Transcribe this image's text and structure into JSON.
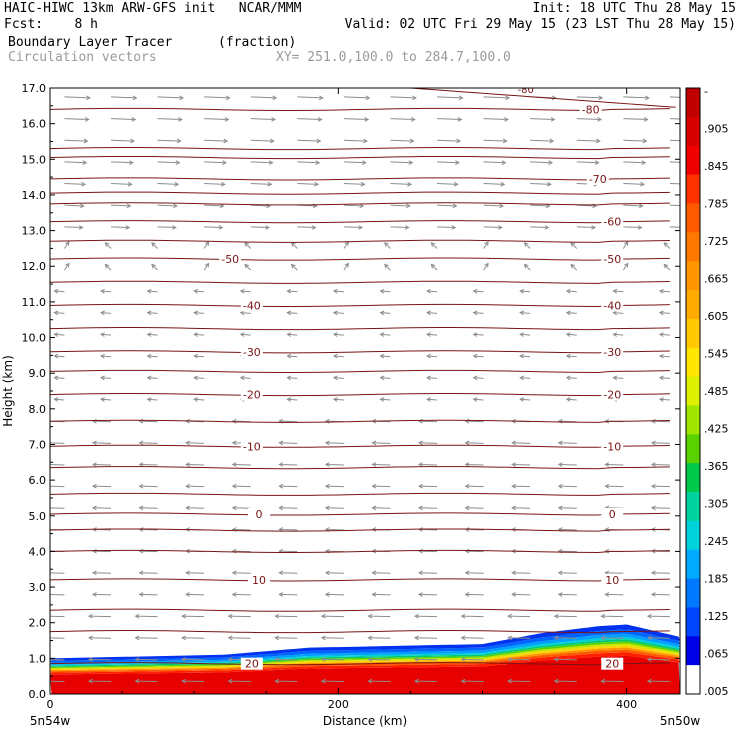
{
  "header": {
    "line1_left": "HAIC-HIWC 13km ARW-GFS init   NCAR/MMM",
    "line1_right": "Init: 18 UTC Thu 28 May 15",
    "line2_left": "Fcst:    8 h",
    "line2_right": "Valid: 02 UTC Fri 29 May 15 (23 LST Thu 28 May 15)",
    "field_name": "Boundary Layer Tracer",
    "field_units": "(fraction)",
    "vector_label": "Circulation vectors",
    "cross_section": "XY= 251.0,100.0 to 284.7,100.0"
  },
  "colors": {
    "contour": "#7a1414",
    "vector": "#8c8c8c",
    "secondary_text": "#9a9a9a"
  },
  "chart_data": {
    "type": "heatmap",
    "title": "Boundary Layer Tracer",
    "xlabel": "Distance (km)",
    "ylabel": "Height (km)",
    "xlim": [
      0,
      437
    ],
    "ylim": [
      0,
      17
    ],
    "x_ticks": [
      0,
      200,
      400
    ],
    "x_tick_labels": [
      "0",
      "200",
      "400"
    ],
    "x_end_labels": [
      "5n54w",
      "5n50w"
    ],
    "y_ticks": [
      0,
      1,
      2,
      3,
      4,
      5,
      6,
      7,
      8,
      9,
      10,
      11,
      12,
      13,
      14,
      15,
      16,
      17
    ],
    "y_tick_labels": [
      "0.0",
      "1.0",
      "2.0",
      "3.0",
      "4.0",
      "5.0",
      "6.0",
      "7.0",
      "8.0",
      "9.0",
      "10.0",
      "11.0",
      "12.0",
      "13.0",
      "14.0",
      "15.0",
      "16.0",
      "17.0"
    ],
    "colorbar_labels": [
      "-",
      ".905",
      ".845",
      ".785",
      ".725",
      ".665",
      ".605",
      ".545",
      ".485",
      ".425",
      ".365",
      ".305",
      ".245",
      ".185",
      ".125",
      ".065",
      ".005"
    ],
    "colorbar_colors": [
      "#c00000",
      "#d80000",
      "#f00000",
      "#ff3200",
      "#ff5a00",
      "#ff7800",
      "#ff9600",
      "#ffaa00",
      "#ffc800",
      "#ffe600",
      "#dcf000",
      "#a0e600",
      "#5ad200",
      "#00c84b",
      "#00d2a0",
      "#00d2dc",
      "#00aaff",
      "#0078ff",
      "#0046ff",
      "#0000e6",
      "#ffffff"
    ],
    "tracer_profile": {
      "x_km": [
        0,
        60,
        120,
        180,
        240,
        300,
        340,
        380,
        400,
        437
      ],
      "top_km": [
        1.0,
        1.05,
        1.1,
        1.3,
        1.35,
        1.4,
        1.7,
        1.9,
        1.95,
        1.6
      ]
    },
    "temperature_contours": [
      {
        "label": "20",
        "y_km": 0.85,
        "label_x_km": [
          140,
          390
        ]
      },
      {
        "label": "10",
        "y_km": 3.2,
        "label_x_km": [
          145,
          390
        ]
      },
      {
        "label": "0",
        "y_km": 5.05,
        "label_x_km": [
          145,
          390
        ]
      },
      {
        "label": "-10",
        "y_km": 6.95,
        "label_x_km": [
          140,
          390
        ]
      },
      {
        "label": "-20",
        "y_km": 8.4,
        "label_x_km": [
          140,
          390
        ]
      },
      {
        "label": "-30",
        "y_km": 9.6,
        "label_x_km": [
          140,
          390
        ]
      },
      {
        "label": "-40",
        "y_km": 10.9,
        "label_x_km": [
          140,
          390
        ]
      },
      {
        "label": "-50",
        "y_km": 12.2,
        "label_x_km": [
          125,
          390
        ]
      },
      {
        "label": "-60",
        "y_km": 13.25,
        "label_x_km": [
          390
        ]
      },
      {
        "label": "-70",
        "y_km": 14.45,
        "label_x_km": [
          380
        ]
      },
      {
        "label": "-80",
        "y_km": 16.4,
        "label_x_km": [
          375
        ]
      }
    ],
    "extra_contour_levels_km": [
      1.75,
      2.35,
      4.0,
      4.6,
      5.6,
      6.35,
      7.65,
      9.05,
      10.25,
      11.55,
      12.7,
      13.75,
      14.05,
      15.05,
      15.3
    ],
    "partial_label": "-80"
  }
}
